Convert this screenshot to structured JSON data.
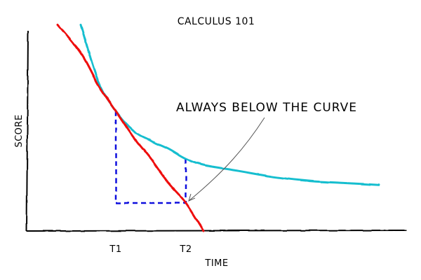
{
  "chart_data": {
    "type": "line",
    "title": "CALCULUS 101",
    "xlabel": "TIME",
    "ylabel": "SCORE",
    "xlim": [
      0,
      10
    ],
    "ylim": [
      0,
      10
    ],
    "x_ticks": [
      {
        "x": 2.5,
        "label": "T1"
      },
      {
        "x": 4.5,
        "label": "T2"
      }
    ],
    "series": [
      {
        "color": "#17becf",
        "x": [
          1.5,
          2,
          2.5,
          3,
          3.5,
          4,
          4.5,
          5,
          6,
          7,
          8,
          9,
          10
        ],
        "y": [
          10.3,
          7.5,
          6.0,
          5.0,
          4.5,
          4.1,
          3.6,
          3.3,
          3.0,
          2.7,
          2.5,
          2.4,
          2.3
        ]
      },
      {
        "color": "#ee1111",
        "x": [
          0.85,
          1.5,
          2,
          2.5,
          3,
          3.5,
          4,
          4.5,
          5.0
        ],
        "y": [
          10.3,
          8.9,
          7.3,
          6.0,
          4.7,
          3.6,
          2.4,
          1.4,
          0.0
        ]
      }
    ],
    "slope_triangle": {
      "color": "#1111dd",
      "x1": 2.5,
      "x2": 4.5,
      "y_top_left": 6.0,
      "y_top_right": 3.6,
      "y_bottom": 1.4
    },
    "annotation": {
      "text": "ALWAYS BELOW THE CURVE",
      "point": {
        "x": 4.5,
        "y": 1.4
      }
    }
  }
}
